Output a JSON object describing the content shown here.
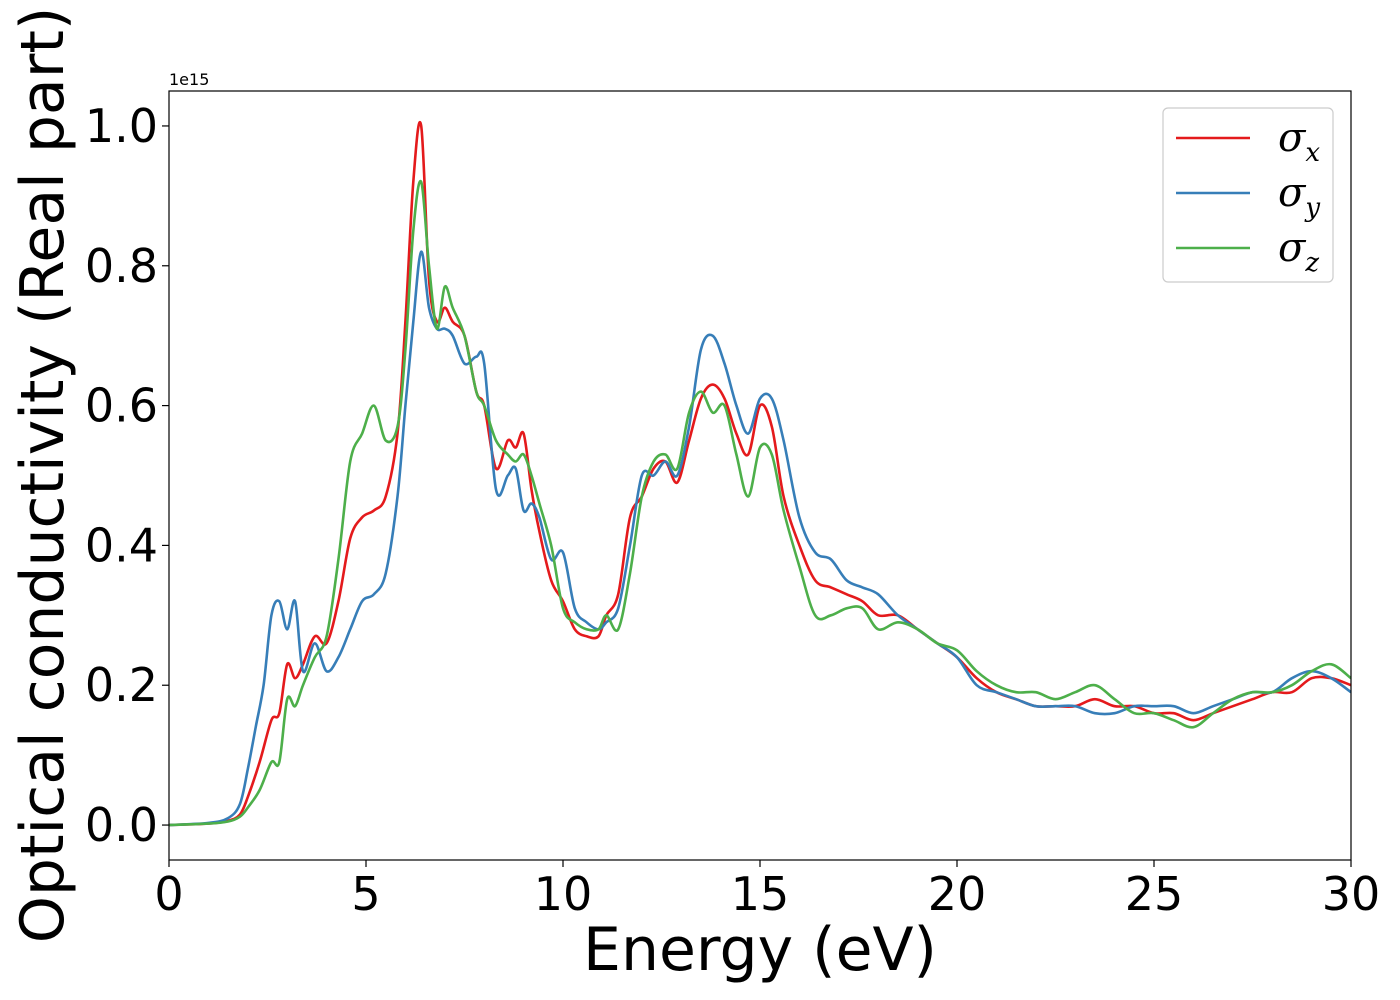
{
  "chart_data": {
    "type": "line",
    "title": "",
    "xlabel": "Energy (eV)",
    "ylabel": "Optical conductivity (Real part)",
    "y_offset_text": "1e15",
    "y_scale_factor": 1000000000000000.0,
    "xlim": [
      0,
      30
    ],
    "ylim": [
      -0.05,
      1.05
    ],
    "xticks": [
      0,
      5,
      10,
      15,
      20,
      25,
      30
    ],
    "xtick_labels": [
      "0",
      "5",
      "10",
      "15",
      "20",
      "25",
      "30"
    ],
    "yticks": [
      0.0,
      0.2,
      0.4,
      0.6,
      0.8,
      1.0
    ],
    "ytick_labels": [
      "0.0",
      "0.2",
      "0.4",
      "0.6",
      "0.8",
      "1.0"
    ],
    "grid": false,
    "legend_position": "top-right",
    "series": [
      {
        "name": "σx",
        "symbol": "σ",
        "subscript": "x",
        "color": "#e41a1c",
        "x": [
          0,
          1,
          1.5,
          1.8,
          2.0,
          2.3,
          2.6,
          2.8,
          3.0,
          3.2,
          3.4,
          3.7,
          4.0,
          4.3,
          4.6,
          4.9,
          5.2,
          5.5,
          5.8,
          6.0,
          6.2,
          6.4,
          6.6,
          6.8,
          7.0,
          7.2,
          7.5,
          7.8,
          8.0,
          8.3,
          8.6,
          8.8,
          9.0,
          9.2,
          9.4,
          9.7,
          10.0,
          10.3,
          10.6,
          10.9,
          11.1,
          11.4,
          11.7,
          12.0,
          12.3,
          12.6,
          12.9,
          13.2,
          13.5,
          13.8,
          14.1,
          14.4,
          14.7,
          15.0,
          15.3,
          15.6,
          16.0,
          16.4,
          16.8,
          17.2,
          17.6,
          18.0,
          18.5,
          19.0,
          19.5,
          20.0,
          20.5,
          21.0,
          21.5,
          22.0,
          22.5,
          23.0,
          23.5,
          24.0,
          24.5,
          25.0,
          25.5,
          26.0,
          26.5,
          27.0,
          27.5,
          28.0,
          28.5,
          29.0,
          29.5,
          30.0
        ],
        "y": [
          0.0,
          0.002,
          0.006,
          0.015,
          0.04,
          0.09,
          0.15,
          0.16,
          0.23,
          0.21,
          0.23,
          0.27,
          0.26,
          0.32,
          0.41,
          0.44,
          0.45,
          0.47,
          0.56,
          0.72,
          0.92,
          1.0,
          0.78,
          0.72,
          0.74,
          0.72,
          0.7,
          0.62,
          0.6,
          0.51,
          0.55,
          0.54,
          0.56,
          0.48,
          0.42,
          0.35,
          0.32,
          0.28,
          0.27,
          0.27,
          0.3,
          0.33,
          0.44,
          0.47,
          0.51,
          0.52,
          0.49,
          0.55,
          0.61,
          0.63,
          0.61,
          0.56,
          0.53,
          0.6,
          0.57,
          0.47,
          0.4,
          0.35,
          0.34,
          0.33,
          0.32,
          0.3,
          0.3,
          0.28,
          0.26,
          0.24,
          0.21,
          0.19,
          0.18,
          0.17,
          0.17,
          0.17,
          0.18,
          0.17,
          0.17,
          0.16,
          0.16,
          0.15,
          0.16,
          0.17,
          0.18,
          0.19,
          0.19,
          0.21,
          0.21,
          0.2
        ]
      },
      {
        "name": "σy",
        "symbol": "σ",
        "subscript": "y",
        "color": "#377eb8",
        "x": [
          0,
          1,
          1.5,
          1.8,
          2.0,
          2.2,
          2.4,
          2.6,
          2.8,
          3.0,
          3.2,
          3.4,
          3.7,
          4.0,
          4.3,
          4.6,
          4.9,
          5.2,
          5.5,
          5.8,
          6.0,
          6.2,
          6.4,
          6.6,
          6.8,
          7.0,
          7.2,
          7.5,
          7.8,
          8.0,
          8.3,
          8.6,
          8.8,
          9.0,
          9.2,
          9.4,
          9.7,
          10.0,
          10.3,
          10.6,
          10.9,
          11.1,
          11.4,
          11.7,
          12.0,
          12.3,
          12.6,
          12.9,
          13.2,
          13.5,
          13.8,
          14.1,
          14.4,
          14.7,
          15.0,
          15.3,
          15.6,
          16.0,
          16.4,
          16.8,
          17.2,
          17.6,
          18.0,
          18.5,
          19.0,
          19.5,
          20.0,
          20.5,
          21.0,
          21.5,
          22.0,
          22.5,
          23.0,
          23.5,
          24.0,
          24.5,
          25.0,
          25.5,
          26.0,
          26.5,
          27.0,
          27.5,
          28.0,
          28.5,
          29.0,
          29.5,
          30.0
        ],
        "y": [
          0.0,
          0.003,
          0.01,
          0.03,
          0.08,
          0.14,
          0.2,
          0.3,
          0.32,
          0.28,
          0.32,
          0.22,
          0.26,
          0.22,
          0.24,
          0.28,
          0.32,
          0.33,
          0.36,
          0.47,
          0.6,
          0.72,
          0.82,
          0.74,
          0.71,
          0.71,
          0.7,
          0.66,
          0.67,
          0.66,
          0.48,
          0.5,
          0.51,
          0.45,
          0.46,
          0.44,
          0.38,
          0.39,
          0.31,
          0.29,
          0.28,
          0.29,
          0.31,
          0.4,
          0.5,
          0.5,
          0.52,
          0.5,
          0.57,
          0.68,
          0.7,
          0.66,
          0.6,
          0.56,
          0.61,
          0.61,
          0.55,
          0.44,
          0.39,
          0.38,
          0.35,
          0.34,
          0.33,
          0.3,
          0.28,
          0.26,
          0.24,
          0.2,
          0.19,
          0.18,
          0.17,
          0.17,
          0.17,
          0.16,
          0.16,
          0.17,
          0.17,
          0.17,
          0.16,
          0.17,
          0.18,
          0.19,
          0.19,
          0.21,
          0.22,
          0.21,
          0.19
        ]
      },
      {
        "name": "σz",
        "symbol": "σ",
        "subscript": "z",
        "color": "#4daf4a",
        "x": [
          0,
          1,
          1.5,
          1.8,
          2.0,
          2.3,
          2.6,
          2.8,
          3.0,
          3.2,
          3.4,
          3.7,
          4.0,
          4.3,
          4.6,
          4.9,
          5.2,
          5.5,
          5.8,
          6.0,
          6.2,
          6.4,
          6.6,
          6.8,
          7.0,
          7.2,
          7.5,
          7.8,
          8.0,
          8.3,
          8.6,
          8.8,
          9.0,
          9.2,
          9.4,
          9.7,
          10.0,
          10.3,
          10.6,
          10.9,
          11.1,
          11.4,
          11.7,
          12.0,
          12.3,
          12.6,
          12.9,
          13.2,
          13.5,
          13.8,
          14.1,
          14.4,
          14.7,
          15.0,
          15.3,
          15.6,
          16.0,
          16.4,
          16.8,
          17.2,
          17.6,
          18.0,
          18.5,
          19.0,
          19.5,
          20.0,
          20.5,
          21.0,
          21.5,
          22.0,
          22.5,
          23.0,
          23.5,
          24.0,
          24.5,
          25.0,
          25.5,
          26.0,
          26.5,
          27.0,
          27.5,
          28.0,
          28.5,
          29.0,
          29.5,
          30.0
        ],
        "y": [
          0.0,
          0.002,
          0.005,
          0.012,
          0.025,
          0.05,
          0.09,
          0.09,
          0.18,
          0.17,
          0.2,
          0.24,
          0.27,
          0.38,
          0.52,
          0.56,
          0.6,
          0.55,
          0.57,
          0.68,
          0.85,
          0.92,
          0.8,
          0.71,
          0.77,
          0.74,
          0.7,
          0.62,
          0.6,
          0.55,
          0.53,
          0.52,
          0.53,
          0.5,
          0.46,
          0.4,
          0.31,
          0.29,
          0.28,
          0.28,
          0.3,
          0.28,
          0.36,
          0.47,
          0.52,
          0.53,
          0.51,
          0.59,
          0.62,
          0.59,
          0.6,
          0.53,
          0.47,
          0.54,
          0.53,
          0.45,
          0.37,
          0.3,
          0.3,
          0.31,
          0.31,
          0.28,
          0.29,
          0.28,
          0.26,
          0.25,
          0.22,
          0.2,
          0.19,
          0.19,
          0.18,
          0.19,
          0.2,
          0.18,
          0.16,
          0.16,
          0.15,
          0.14,
          0.16,
          0.18,
          0.19,
          0.19,
          0.2,
          0.22,
          0.23,
          0.21
        ]
      }
    ]
  }
}
